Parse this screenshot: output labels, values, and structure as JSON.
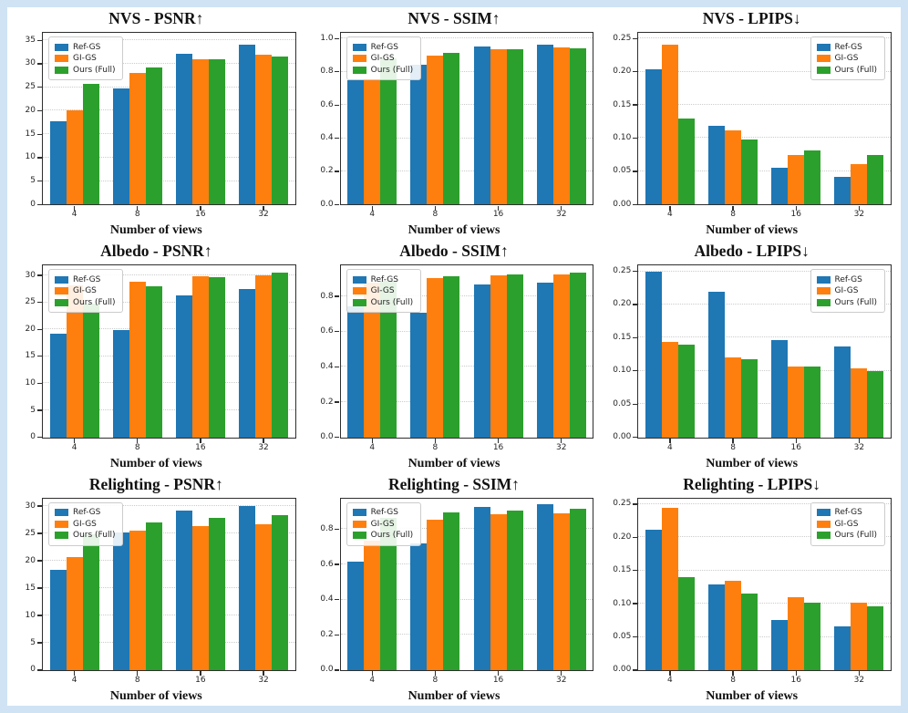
{
  "figure": {
    "background_color": "#ffffff",
    "frame_color": "#cfe3f5",
    "series_colors": {
      "Ref-GS": "#1f77b4",
      "GI-GS": "#ff7f0e",
      "Ours (Full)": "#2ca02c"
    }
  },
  "chart_data": [
    {
      "type": "bar",
      "title": "NVS - PSNR↑",
      "xlabel": "Number of views",
      "categories": [
        "4",
        "8",
        "16",
        "32"
      ],
      "series": [
        {
          "name": "Ref-GS",
          "color": "#1f77b4",
          "values": [
            17.8,
            24.8,
            32.2,
            34.1
          ]
        },
        {
          "name": "GI-GS",
          "color": "#ff7f0e",
          "values": [
            20.0,
            28.0,
            31.0,
            32.0
          ]
        },
        {
          "name": "Ours (Full)",
          "color": "#2ca02c",
          "values": [
            25.7,
            29.2,
            30.9,
            31.6
          ]
        }
      ],
      "ylim": [
        0,
        36.6
      ],
      "yticks": [
        0,
        5,
        10,
        15,
        20,
        25,
        30,
        35
      ],
      "ytick_labels": [
        "0",
        "5",
        "10",
        "15",
        "20",
        "25",
        "30",
        "35"
      ],
      "legend_pos": "top-left",
      "grid": true
    },
    {
      "type": "bar",
      "title": "NVS - SSIM↑",
      "xlabel": "Number of views",
      "categories": [
        "4",
        "8",
        "16",
        "32"
      ],
      "series": [
        {
          "name": "Ref-GS",
          "color": "#1f77b4",
          "values": [
            0.75,
            0.84,
            0.95,
            0.965
          ]
        },
        {
          "name": "GI-GS",
          "color": "#ff7f0e",
          "values": [
            0.75,
            0.895,
            0.935,
            0.945
          ]
        },
        {
          "name": "Ours (Full)",
          "color": "#2ca02c",
          "values": [
            0.88,
            0.915,
            0.935,
            0.94
          ]
        }
      ],
      "ylim": [
        0,
        1.035
      ],
      "yticks": [
        0.0,
        0.2,
        0.4,
        0.6,
        0.8,
        1.0
      ],
      "ytick_labels": [
        "0.0",
        "0.2",
        "0.4",
        "0.6",
        "0.8",
        "1.0"
      ],
      "legend_pos": "top-left",
      "grid": true
    },
    {
      "type": "bar",
      "title": "NVS - LPIPS↓",
      "xlabel": "Number of views",
      "categories": [
        "4",
        "8",
        "16",
        "32"
      ],
      "series": [
        {
          "name": "Ref-GS",
          "color": "#1f77b4",
          "values": [
            0.204,
            0.119,
            0.055,
            0.041
          ]
        },
        {
          "name": "GI-GS",
          "color": "#ff7f0e",
          "values": [
            0.24,
            0.111,
            0.074,
            0.061
          ]
        },
        {
          "name": "Ours (Full)",
          "color": "#2ca02c",
          "values": [
            0.129,
            0.098,
            0.081,
            0.074
          ]
        }
      ],
      "ylim": [
        0,
        0.2585
      ],
      "yticks": [
        0.0,
        0.05,
        0.1,
        0.15,
        0.2,
        0.25
      ],
      "ytick_labels": [
        "0.00",
        "0.05",
        "0.10",
        "0.15",
        "0.20",
        "0.25"
      ],
      "legend_pos": "top-right",
      "grid": true
    },
    {
      "type": "bar",
      "title": "Albedo - PSNR↑",
      "xlabel": "Number of views",
      "categories": [
        "4",
        "8",
        "16",
        "32"
      ],
      "series": [
        {
          "name": "Ref-GS",
          "color": "#1f77b4",
          "values": [
            19.2,
            19.9,
            26.3,
            27.5
          ]
        },
        {
          "name": "GI-GS",
          "color": "#ff7f0e",
          "values": [
            28.2,
            28.9,
            29.8,
            30.0
          ]
        },
        {
          "name": "Ours (Full)",
          "color": "#2ca02c",
          "values": [
            24.7,
            27.9,
            29.7,
            30.5
          ]
        }
      ],
      "ylim": [
        0,
        31.8
      ],
      "yticks": [
        0,
        5,
        10,
        15,
        20,
        25,
        30
      ],
      "ytick_labels": [
        "0",
        "5",
        "10",
        "15",
        "20",
        "25",
        "30"
      ],
      "legend_pos": "top-left",
      "grid": true
    },
    {
      "type": "bar",
      "title": "Albedo - SSIM↑",
      "xlabel": "Number of views",
      "categories": [
        "4",
        "8",
        "16",
        "32"
      ],
      "series": [
        {
          "name": "Ref-GS",
          "color": "#1f77b4",
          "values": [
            0.745,
            0.71,
            0.87,
            0.88
          ]
        },
        {
          "name": "GI-GS",
          "color": "#ff7f0e",
          "values": [
            0.88,
            0.905,
            0.92,
            0.925
          ]
        },
        {
          "name": "Ours (Full)",
          "color": "#2ca02c",
          "values": [
            0.89,
            0.915,
            0.925,
            0.935
          ]
        }
      ],
      "ylim": [
        0,
        0.975
      ],
      "yticks": [
        0.0,
        0.2,
        0.4,
        0.6,
        0.8
      ],
      "ytick_labels": [
        "0.0",
        "0.2",
        "0.4",
        "0.6",
        "0.8"
      ],
      "legend_pos": "top-left",
      "grid": true
    },
    {
      "type": "bar",
      "title": "Albedo - LPIPS↓",
      "xlabel": "Number of views",
      "categories": [
        "4",
        "8",
        "16",
        "32"
      ],
      "series": [
        {
          "name": "Ref-GS",
          "color": "#1f77b4",
          "values": [
            0.249,
            0.219,
            0.146,
            0.137
          ]
        },
        {
          "name": "GI-GS",
          "color": "#ff7f0e",
          "values": [
            0.143,
            0.121,
            0.107,
            0.104
          ]
        },
        {
          "name": "Ours (Full)",
          "color": "#2ca02c",
          "values": [
            0.139,
            0.118,
            0.106,
            0.1
          ]
        }
      ],
      "ylim": [
        0,
        0.2585
      ],
      "yticks": [
        0.0,
        0.05,
        0.1,
        0.15,
        0.2,
        0.25
      ],
      "ytick_labels": [
        "0.00",
        "0.05",
        "0.10",
        "0.15",
        "0.20",
        "0.25"
      ],
      "legend_pos": "top-right",
      "grid": true
    },
    {
      "type": "bar",
      "title": "Relighting - PSNR↑",
      "xlabel": "Number of views",
      "categories": [
        "4",
        "8",
        "16",
        "32"
      ],
      "series": [
        {
          "name": "Ref-GS",
          "color": "#1f77b4",
          "values": [
            18.3,
            25.2,
            29.1,
            30.0
          ]
        },
        {
          "name": "GI-GS",
          "color": "#ff7f0e",
          "values": [
            20.6,
            25.5,
            26.3,
            26.6
          ]
        },
        {
          "name": "Ours (Full)",
          "color": "#2ca02c",
          "values": [
            24.8,
            27.0,
            27.8,
            28.3
          ]
        }
      ],
      "ylim": [
        0,
        31.4
      ],
      "yticks": [
        0,
        5,
        10,
        15,
        20,
        25,
        30
      ],
      "ytick_labels": [
        "0",
        "5",
        "10",
        "15",
        "20",
        "25",
        "30"
      ],
      "legend_pos": "top-left",
      "grid": true
    },
    {
      "type": "bar",
      "title": "Relighting - SSIM↑",
      "xlabel": "Number of views",
      "categories": [
        "4",
        "8",
        "16",
        "32"
      ],
      "series": [
        {
          "name": "Ref-GS",
          "color": "#1f77b4",
          "values": [
            0.615,
            0.72,
            0.925,
            0.94
          ]
        },
        {
          "name": "GI-GS",
          "color": "#ff7f0e",
          "values": [
            0.735,
            0.855,
            0.885,
            0.89
          ]
        },
        {
          "name": "Ours (Full)",
          "color": "#2ca02c",
          "values": [
            0.865,
            0.895,
            0.905,
            0.915
          ]
        }
      ],
      "ylim": [
        0,
        0.975
      ],
      "yticks": [
        0.0,
        0.2,
        0.4,
        0.6,
        0.8
      ],
      "ytick_labels": [
        "0.0",
        "0.2",
        "0.4",
        "0.6",
        "0.8"
      ],
      "legend_pos": "top-left",
      "grid": true
    },
    {
      "type": "bar",
      "title": "Relighting - LPIPS↓",
      "xlabel": "Number of views",
      "categories": [
        "4",
        "8",
        "16",
        "32"
      ],
      "series": [
        {
          "name": "Ref-GS",
          "color": "#1f77b4",
          "values": [
            0.212,
            0.129,
            0.076,
            0.066
          ]
        },
        {
          "name": "GI-GS",
          "color": "#ff7f0e",
          "values": [
            0.245,
            0.135,
            0.11,
            0.102
          ]
        },
        {
          "name": "Ours (Full)",
          "color": "#2ca02c",
          "values": [
            0.14,
            0.115,
            0.102,
            0.096
          ]
        }
      ],
      "ylim": [
        0,
        0.2585
      ],
      "yticks": [
        0.0,
        0.05,
        0.1,
        0.15,
        0.2,
        0.25
      ],
      "ytick_labels": [
        "0.00",
        "0.05",
        "0.10",
        "0.15",
        "0.20",
        "0.25"
      ],
      "legend_pos": "top-right",
      "grid": true
    }
  ]
}
